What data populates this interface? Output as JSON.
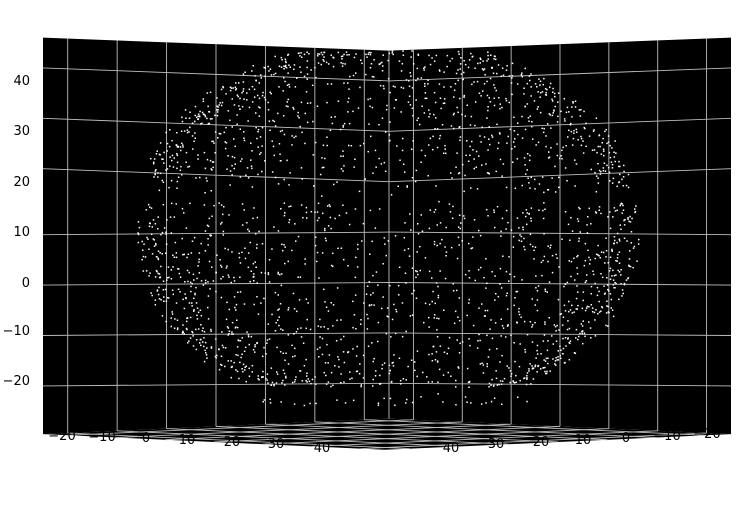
{
  "chart_data": {
    "type": "scatter",
    "projection": "3d",
    "title": "",
    "xlabel": "",
    "ylabel": "",
    "zlabel": "",
    "grid": true,
    "background": "#000000",
    "grid_color": "#bdbdbd",
    "point_color": "#ffffff",
    "xlim": [
      -25,
      45
    ],
    "ylim": [
      -25,
      45
    ],
    "zlim": [
      -27,
      46
    ],
    "x_ticks": [
      "−20",
      "−10",
      "0",
      "10",
      "20",
      "30",
      "40"
    ],
    "y_ticks": [
      "−20",
      "−10",
      "0",
      "10",
      "20",
      "30",
      "40"
    ],
    "z_ticks": [
      "−20",
      "−10",
      "0",
      "10",
      "20",
      "30",
      "40"
    ],
    "point_cloud": {
      "shape": "hollow spherical shell",
      "center": [
        10,
        10,
        10
      ],
      "radius": 35,
      "approx_point_count": 2600
    }
  }
}
